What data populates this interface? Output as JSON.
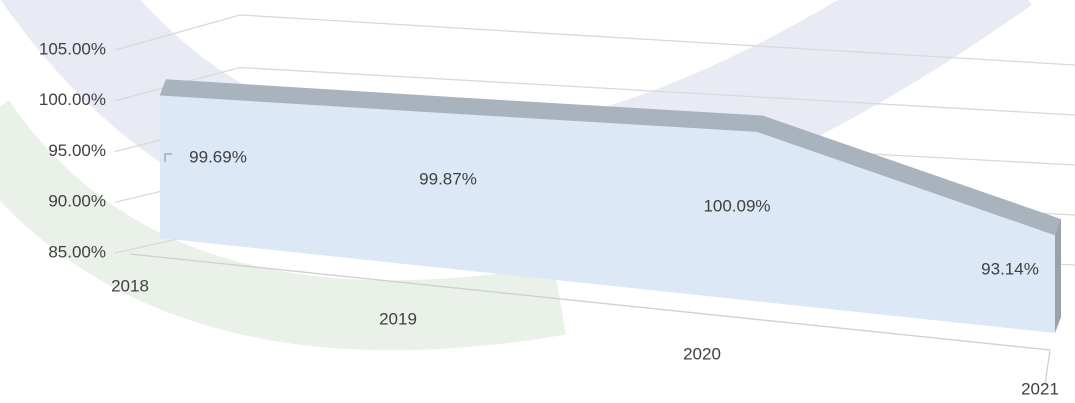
{
  "chart_data": {
    "type": "area3d",
    "categories": [
      "2018",
      "2019",
      "2020",
      "2021"
    ],
    "values": [
      99.69,
      99.87,
      100.09,
      93.14
    ],
    "value_labels": [
      "99.69%",
      "99.87%",
      "100.09%",
      "93.14%"
    ],
    "color": "#dde8f6",
    "ylim": [
      85,
      105
    ],
    "yticks": [
      {
        "value": 85,
        "label": "85.00%"
      },
      {
        "value": 90,
        "label": "90.00%"
      },
      {
        "value": 95,
        "label": "95.00%"
      },
      {
        "value": 100,
        "label": "100.00%"
      },
      {
        "value": 105,
        "label": "105.00%"
      }
    ],
    "grid": true
  }
}
